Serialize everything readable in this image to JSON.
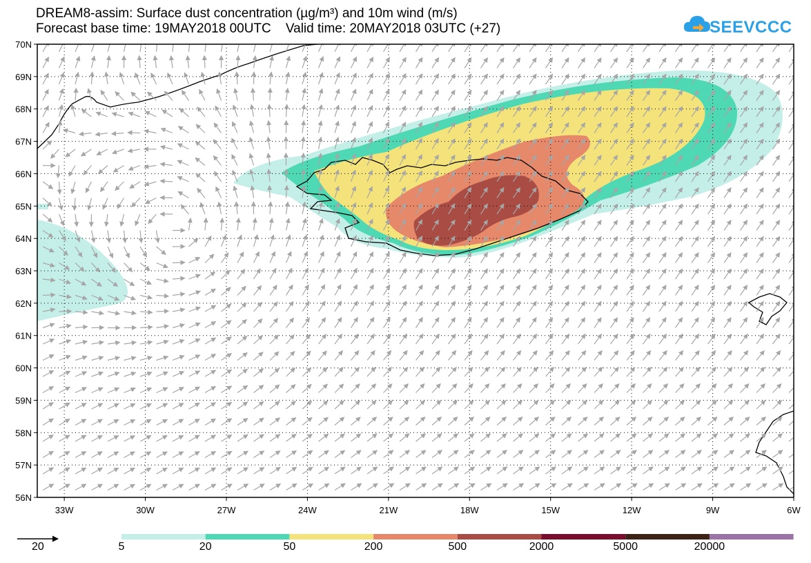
{
  "header": {
    "title_line1": "DREAM8-assim: Surface dust concentration (µg/m³) and 10m wind (m/s)",
    "title_line2": "Forecast base time: 19MAY2018 00UTC    Valid time: 20MAY2018 03UTC (+27)"
  },
  "logo": {
    "text": "SEEVCCC",
    "icon": "cloud-arrow-icon",
    "color": "#2aa0e6"
  },
  "map": {
    "lon_range": [
      -34.0,
      -6.0
    ],
    "lat_range": [
      56,
      70
    ],
    "lat_labels": [
      "70N",
      "69N",
      "68N",
      "67N",
      "66N",
      "65N",
      "64N",
      "63N",
      "62N",
      "61N",
      "60N",
      "59N",
      "58N",
      "57N",
      "56N"
    ],
    "lon_labels": [
      "33W",
      "30W",
      "27W",
      "24W",
      "21W",
      "18W",
      "15W",
      "12W",
      "9W",
      "6W"
    ],
    "grid": "dotted"
  },
  "legend": {
    "wind_reference": {
      "label": "20",
      "icon": "wind-reference-arrow-icon"
    },
    "levels": [
      "5",
      "20",
      "50",
      "200",
      "500",
      "2000",
      "5000",
      "20000"
    ],
    "colors": [
      "#c4efe9",
      "#4fd8b4",
      "#f4e37a",
      "#e6886a",
      "#a94d44",
      "#7a0c2e",
      "#3d2216",
      "#9b73a6"
    ]
  }
}
